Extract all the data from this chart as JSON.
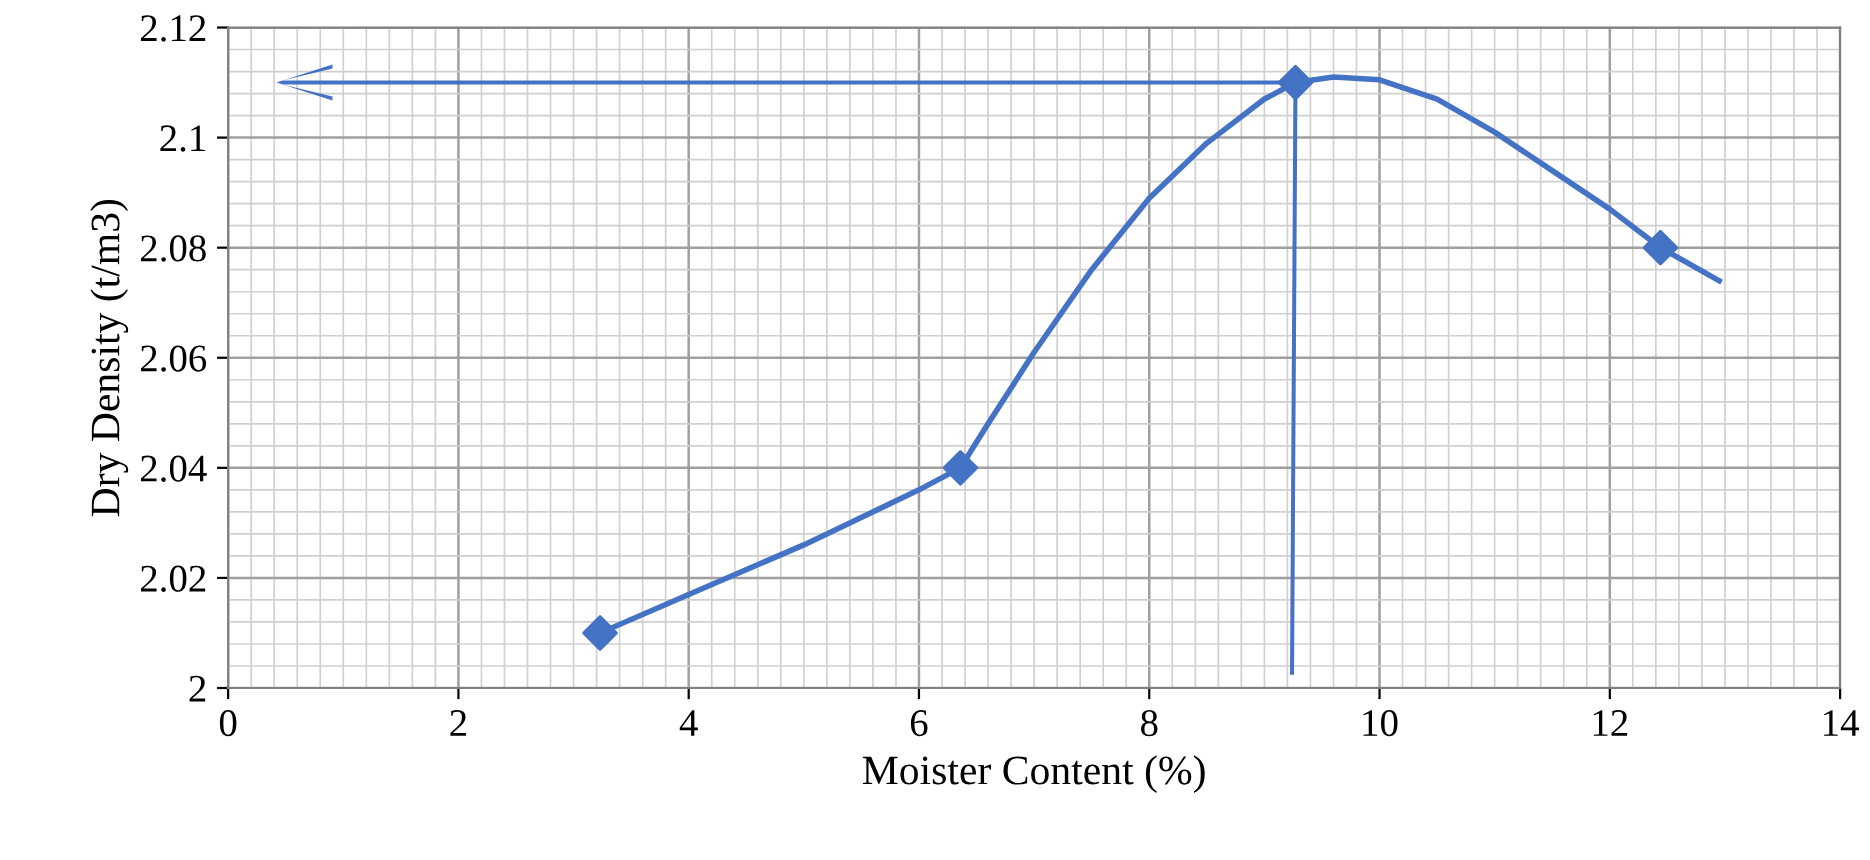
{
  "chart_data": {
    "type": "line",
    "xlabel": "Moister Content (%)",
    "ylabel": "Dry Density (t/m3)",
    "xlim": [
      0,
      14
    ],
    "ylim": [
      2,
      2.12
    ],
    "xticks": [
      0,
      2,
      4,
      6,
      8,
      10,
      12,
      14
    ],
    "yticks": [
      2,
      2.02,
      2.04,
      2.06,
      2.08,
      2.1,
      2.12
    ],
    "grid": true,
    "series": [
      {
        "type": "scatter",
        "color": "#4472c4",
        "marker": "diamond",
        "x": [
          3.23,
          6.36,
          9.27,
          12.44
        ],
        "values": [
          2.01,
          2.04,
          2.11,
          2.08
        ]
      },
      {
        "color": "#4472c4",
        "marker": "none",
        "x": [
          3.23,
          4,
          5,
          6,
          6.36,
          6.6,
          7,
          7.5,
          8,
          8.5,
          9,
          9.27,
          9.6,
          10,
          10.5,
          11,
          11.5,
          12,
          12.44,
          12.95
        ],
        "values": [
          2.01,
          2.017,
          2.026,
          2.036,
          2.04,
          2.048,
          2.061,
          2.076,
          2.089,
          2.099,
          2.107,
          2.11,
          2.111,
          2.1105,
          2.107,
          2.101,
          2.094,
          2.087,
          2.08,
          2.074
        ]
      }
    ]
  }
}
